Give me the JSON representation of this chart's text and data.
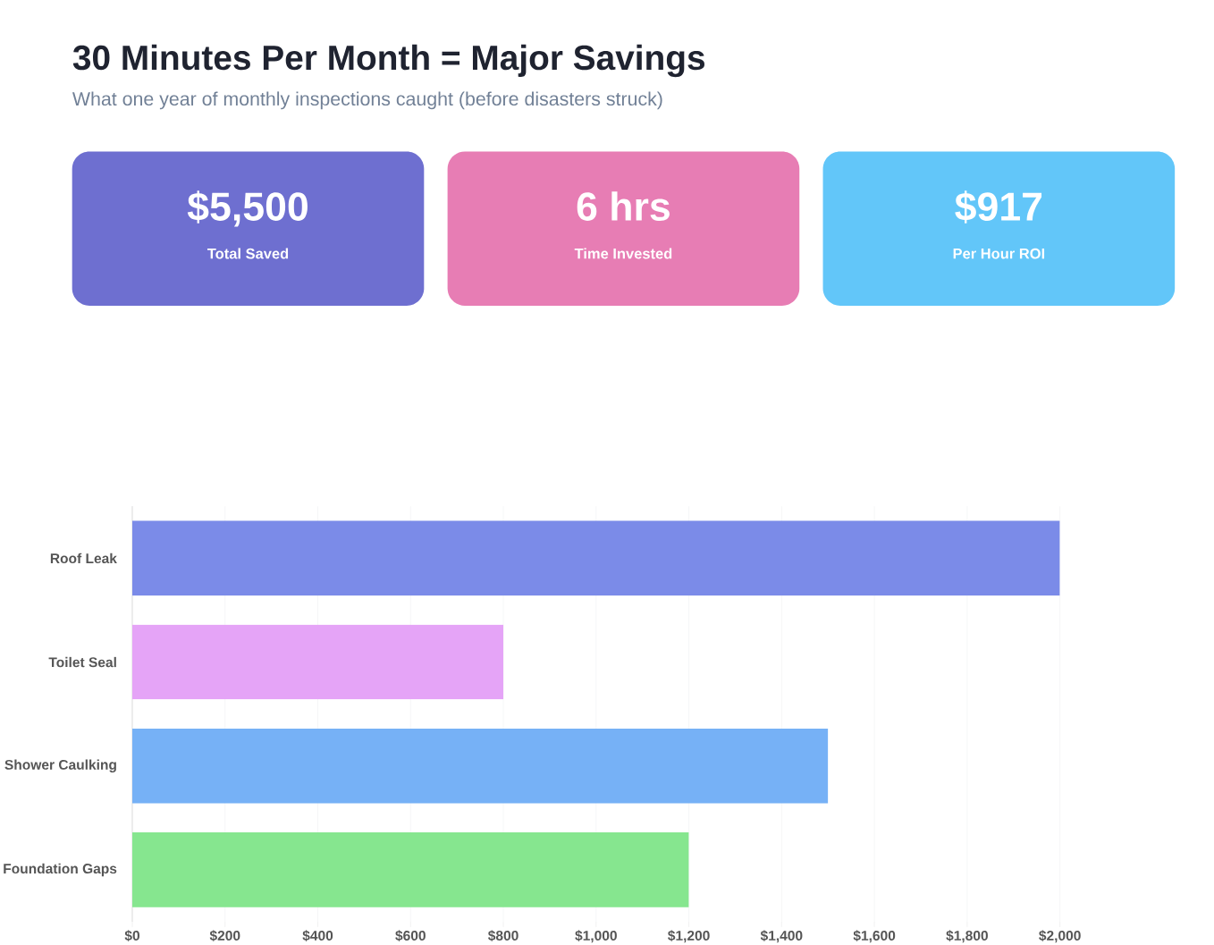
{
  "chart_data": {
    "type": "bar",
    "orientation": "horizontal",
    "title": "30 Minutes Per Month = Major Savings",
    "subtitle": "What one year of monthly inspections caught (before disasters struck)",
    "annotations": [
      "$5,500",
      "Total Saved",
      "6 hrs",
      "Time Invested",
      "$917",
      "Per Hour ROI"
    ],
    "categories": [
      "Roof Leak",
      "Toilet Seal",
      "Shower Caulking",
      "Foundation Gaps"
    ],
    "values": [
      2000,
      800,
      1500,
      1200
    ],
    "colors": [
      "#7b8be8",
      "#e5a4f7",
      "#76b1f6",
      "#86e68f"
    ],
    "xlim": [
      0,
      2000
    ],
    "xticks": [
      {
        "value": 0,
        "label": "$0"
      },
      {
        "value": 200,
        "label": "$200"
      },
      {
        "value": 400,
        "label": "$400"
      },
      {
        "value": 600,
        "label": "$600"
      },
      {
        "value": 800,
        "label": "$800"
      },
      {
        "value": 1000,
        "label": "$1,000"
      },
      {
        "value": 1200,
        "label": "$1,200"
      },
      {
        "value": 1400,
        "label": "$1,400"
      },
      {
        "value": 1600,
        "label": "$1,600"
      },
      {
        "value": 1800,
        "label": "$1,800"
      },
      {
        "value": 2000,
        "label": "$2,000"
      }
    ],
    "grid": "x"
  }
}
